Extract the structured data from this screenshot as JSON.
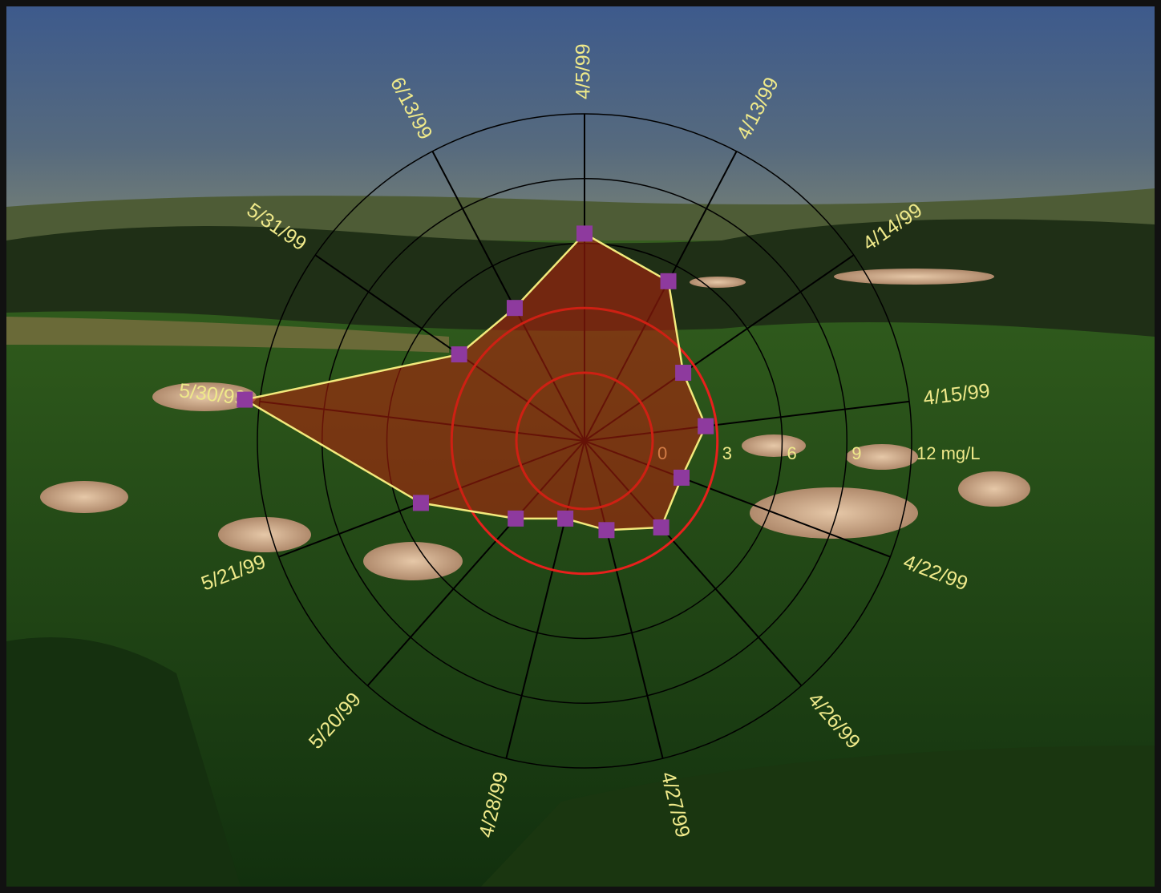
{
  "chart_data": {
    "type": "radar",
    "categories": [
      "4/5/99",
      "4/13/99",
      "4/14/99",
      "4/15/99",
      "4/22/99",
      "4/26/99",
      "4/27/99",
      "4/28/99",
      "5/20/99",
      "5/21/99",
      "5/30/99",
      "5/31/99",
      "6/13/99"
    ],
    "values": [
      6.45,
      5.2,
      2.4,
      2.5,
      1.65,
      2.2,
      1.1,
      0.55,
      1.65,
      4.95,
      12.7,
      3.9,
      3.8
    ],
    "color": "#f3ea7c",
    "fill": "#b8200c",
    "marker_color": "#8e3a9e",
    "rlim": [
      0,
      12
    ],
    "rticks": [
      0,
      3,
      6,
      9,
      {
        "value": 12,
        "label": "12 mg/L"
      }
    ],
    "grid": true
  }
}
